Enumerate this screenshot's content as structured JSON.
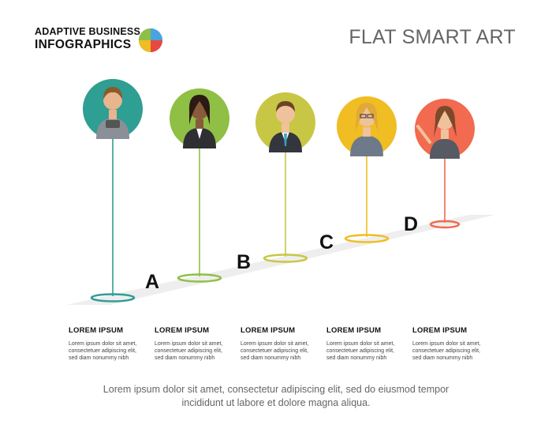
{
  "logo": {
    "line1": "ADAPTIVE BUSINESS",
    "line2": "INFOGRAPHICS"
  },
  "title": "FLAT SMART ART",
  "steps": [
    {
      "letter": "A",
      "color": "#2f9e93",
      "heading": "LOREM IPSUM",
      "text": [
        "Lorem ipsum dolor sit amet,",
        "consectetuer adipiscing elit,",
        "sed diam nonummy nibh"
      ]
    },
    {
      "letter": "B",
      "color": "#8fbf45",
      "heading": "LOREM IPSUM",
      "text": [
        "Lorem ipsum dolor sit amet,",
        "consectetuer adipiscing elit,",
        "sed diam nonummy nibh"
      ]
    },
    {
      "letter": "C",
      "color": "#c8c645",
      "heading": "LOREM IPSUM",
      "text": [
        "Lorem ipsum dolor sit amet,",
        "consectetuer adipiscing elit,",
        "sed diam nonummy nibh"
      ]
    },
    {
      "letter": "D",
      "color": "#f0bd22",
      "heading": "LOREM IPSUM",
      "text": [
        "Lorem ipsum dolor sit amet,",
        "consectetuer adipiscing elit,",
        "sed diam nonummy nibh"
      ]
    },
    {
      "letter": "",
      "color": "#f26a4f",
      "heading": "LOREM IPSUM",
      "text": [
        "Lorem ipsum dolor sit amet,",
        "consectetuer adipiscing elit,",
        "sed diam nonummy nibh"
      ]
    }
  ],
  "footer": {
    "line1": "Lorem ipsum dolor sit amet, consectetur adipiscing elit, sed do eiusmod tempor",
    "line2": "incididunt ut labore et dolore magna aliqua."
  }
}
